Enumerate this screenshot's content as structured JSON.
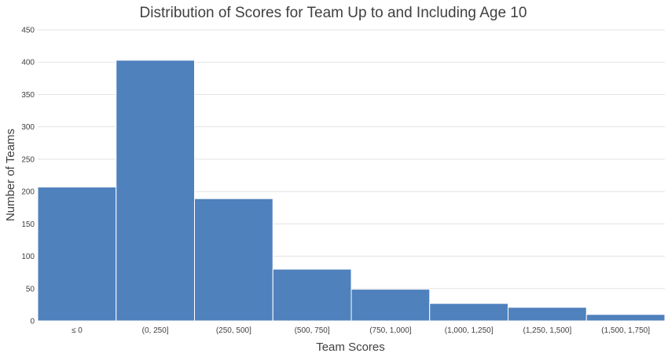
{
  "chart_data": {
    "type": "bar",
    "title": "Distribution of Scores for Team Up to and Including Age 10",
    "xlabel": "Team Scores",
    "ylabel": "Number of Teams",
    "categories": [
      "≤ 0",
      "(0, 250]",
      "(250, 500]",
      "(500, 750]",
      "(750, 1,000]",
      "(1,000, 1,250]",
      "(1,250, 1,500]",
      "(1,500, 1,750]"
    ],
    "values": [
      207,
      403,
      189,
      80,
      49,
      27,
      21,
      10
    ],
    "ylim": [
      0,
      450
    ],
    "yticks": [
      0,
      50,
      100,
      150,
      200,
      250,
      300,
      350,
      400,
      450
    ],
    "grid": true,
    "legend": "none",
    "bar_color": "#4f81bd"
  }
}
